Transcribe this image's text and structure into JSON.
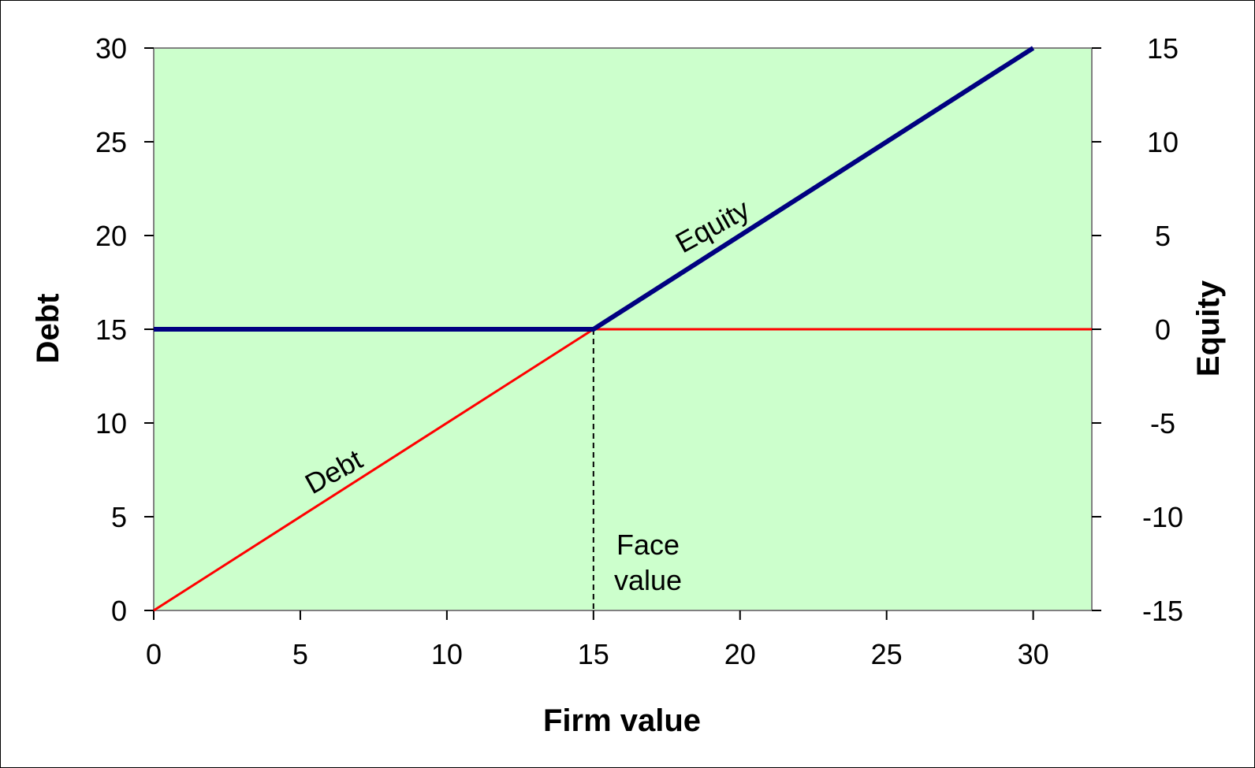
{
  "chart_data": {
    "type": "line",
    "title": "",
    "xlabel": "Firm value",
    "ylabel_left": "Debt",
    "ylabel_right": "Equity",
    "xlim": [
      0,
      32
    ],
    "ylim_left": [
      0,
      30
    ],
    "ylim_right": [
      -15,
      15
    ],
    "x_ticks": [
      0,
      5,
      10,
      15,
      20,
      25,
      30
    ],
    "y_left_ticks": [
      0,
      5,
      10,
      15,
      20,
      25,
      30
    ],
    "y_right_ticks": [
      -15,
      -10,
      -5,
      0,
      5,
      10,
      15
    ],
    "grid": false,
    "legend": "none",
    "plot_background": "#ccffcc",
    "series": [
      {
        "name": "Debt",
        "axis": "left",
        "color": "#ff0000",
        "x": [
          0,
          15,
          32
        ],
        "y": [
          0,
          15,
          15
        ]
      },
      {
        "name": "Equity",
        "axis": "right",
        "color": "#000080",
        "x": [
          0,
          15,
          30
        ],
        "y": [
          0,
          0,
          15
        ]
      }
    ],
    "reference_line": {
      "x": 15,
      "style": "dashed",
      "label_line1": "Face",
      "label_line2": "value"
    },
    "annotations": {
      "debt_label": "Debt",
      "equity_label": "Equity"
    }
  }
}
